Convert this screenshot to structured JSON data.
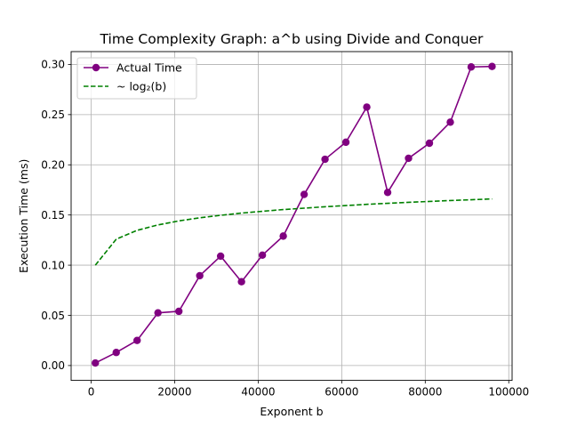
{
  "chart_data": {
    "type": "line",
    "title": "Time Complexity Graph: a^b using Divide and Conquer",
    "xlabel": "Exponent b",
    "ylabel": "Execution Time (ms)",
    "xlim": [
      -4800,
      100800
    ],
    "ylim": [
      -0.0148,
      0.3128
    ],
    "xticks": [
      0,
      20000,
      40000,
      60000,
      80000,
      100000
    ],
    "yticks": [
      0.0,
      0.05,
      0.1,
      0.15,
      0.2,
      0.25,
      0.3
    ],
    "xtick_labels": [
      "0",
      "20000",
      "40000",
      "60000",
      "80000",
      "100000"
    ],
    "ytick_labels": [
      "0.00",
      "0.05",
      "0.10",
      "0.15",
      "0.20",
      "0.25",
      "0.30"
    ],
    "grid": true,
    "legend_position": "upper-left",
    "series": [
      {
        "name": "Actual Time",
        "style": "solid",
        "marker": "circle",
        "color": "#800080",
        "x": [
          1000,
          6000,
          11000,
          16000,
          21000,
          26000,
          31000,
          36000,
          41000,
          46000,
          51000,
          56000,
          61000,
          66000,
          71000,
          76000,
          81000,
          86000,
          91000,
          96000
        ],
        "y": [
          0.0025,
          0.013,
          0.025,
          0.0525,
          0.054,
          0.0895,
          0.109,
          0.0835,
          0.11,
          0.129,
          0.1705,
          0.2055,
          0.2225,
          0.2575,
          0.1725,
          0.2065,
          0.2215,
          0.2425,
          0.2975,
          0.298
        ]
      },
      {
        "name": "~ log₂(b)",
        "style": "dashed",
        "marker": "none",
        "color": "#008000",
        "x": [
          1000,
          6000,
          11000,
          16000,
          21000,
          26000,
          31000,
          36000,
          41000,
          46000,
          51000,
          56000,
          61000,
          66000,
          71000,
          76000,
          81000,
          86000,
          91000,
          96000
        ],
        "y": [
          0.1,
          0.1259,
          0.1347,
          0.1401,
          0.1441,
          0.1472,
          0.1497,
          0.1519,
          0.1537,
          0.1554,
          0.1568,
          0.1582,
          0.1594,
          0.1606,
          0.1616,
          0.1626,
          0.1635,
          0.1644,
          0.1652,
          0.166
        ]
      }
    ]
  }
}
